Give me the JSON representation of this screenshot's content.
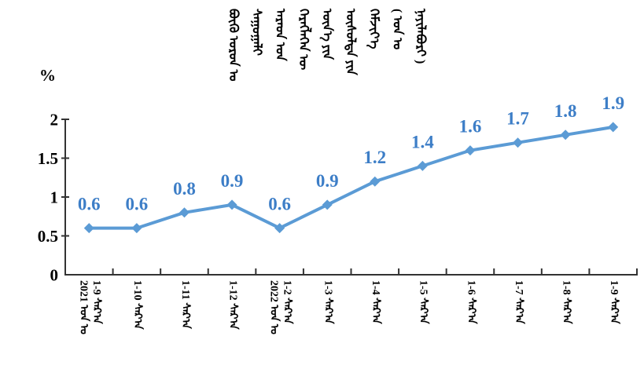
{
  "y_axis": {
    "unit_label": "%",
    "tick_labels": [
      "2",
      "1.5",
      "1",
      "0.5",
      "0"
    ]
  },
  "title_columns": [
    "ᠪᠦᠬᠦ ᠣᠷᠣᠨ ᠤ",
    "ᠰᠠᠭᠤᠭᠠᠯᠢ",
    "ᠠᠷᠠᠳ ᠤᠨ",
    "ᠬᠡᠷᠡᠭᠯᠡᠭᠡᠨ ᠦ",
    "ᠦᠨ᠎ᠡ ᠶᠢᠨ",
    "ᠥᠰᠦᠯᠲᠡ ᠶᠢᠨ",
    "ᠬᠡᠮᠵᠢᠶ᠎ᠡ",
    "( ᠣᠨ ᠤ",
    "ᠨᠡᠶᠢᠯᠡᠪᠦᠷᠢ )"
  ],
  "x_labels": [
    [
      "2021 ᠣᠨ ᠤ",
      "1-9 ᠰᠠᠷ᠎ᠠ"
    ],
    [
      "1-10 ᠰᠠᠷ᠎ᠠ"
    ],
    [
      "1-11 ᠰᠠᠷ᠎ᠠ"
    ],
    [
      "1-12 ᠰᠠᠷ᠎ᠠ"
    ],
    [
      "2022 ᠣᠨ ᠤ",
      "1-2 ᠰᠠᠷ᠎ᠠ"
    ],
    [
      "1-3 ᠰᠠᠷ᠎ᠠ"
    ],
    [
      "1-4 ᠰᠠᠷ᠎ᠠ"
    ],
    [
      "1-5 ᠰᠠᠷ᠎ᠠ"
    ],
    [
      "1-6 ᠰᠠᠷ᠎ᠠ"
    ],
    [
      "1-7 ᠰᠠᠷ᠎ᠠ"
    ],
    [
      "1-8 ᠰᠠᠷ᠎ᠠ"
    ],
    [
      "1-9 ᠰᠠᠷ᠎ᠠ"
    ]
  ],
  "chart_data": {
    "type": "line",
    "title": "ᠪᠦᠬᠦ ᠣᠷᠣᠨ ᠤ ᠰᠠᠭᠤᠭᠠᠯᠢ ᠠᠷᠠᠳ ᠤᠨ ᠬᠡᠷᠡᠭᠯᠡᠭᠡᠨ ᠦ ᠦᠨ᠎ᠡ ᠶᠢᠨ ᠥᠰᠦᠯᠲᠡ ᠶᠢᠨ ᠬᠡᠮᠵᠢᠶ᠎ᠡ ( ᠣᠨ ᠤ ᠨᠡᠶᠢᠯᠡᠪᠦᠷᠢ )",
    "categories": [
      "2021 ᠣᠨ ᠤ 1-9 ᠰᠠᠷ᠎ᠠ",
      "1-10 ᠰᠠᠷ᠎ᠠ",
      "1-11 ᠰᠠᠷ᠎ᠠ",
      "1-12 ᠰᠠᠷ᠎ᠠ",
      "2022 ᠣᠨ ᠤ 1-2 ᠰᠠᠷ᠎ᠠ",
      "1-3 ᠰᠠᠷ᠎ᠠ",
      "1-4 ᠰᠠᠷ᠎ᠠ",
      "1-5 ᠰᠠᠷ᠎ᠠ",
      "1-6 ᠰᠠᠷ᠎ᠠ",
      "1-7 ᠰᠠᠷ᠎ᠠ",
      "1-8 ᠰᠠᠷ᠎ᠠ",
      "1-9 ᠰᠠᠷ᠎ᠠ"
    ],
    "values": [
      0.6,
      0.6,
      0.8,
      0.9,
      0.6,
      0.9,
      1.2,
      1.4,
      1.6,
      1.7,
      1.8,
      1.9
    ],
    "xlabel": "",
    "ylabel": "%",
    "ylim": [
      0,
      2
    ],
    "yticks": [
      0,
      0.5,
      1,
      1.5,
      2
    ],
    "grid": false,
    "legend": "none",
    "marker": "diamond",
    "data_labels": true
  },
  "colors": {
    "line": "#5B9BD5",
    "marker": "#5B9BD5",
    "data_label": "#3D7EC7",
    "axis": "#333333",
    "text": "#000000"
  }
}
